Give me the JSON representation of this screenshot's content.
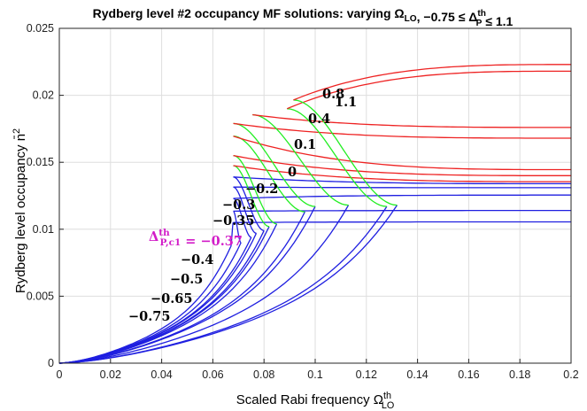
{
  "chart_data": {
    "type": "line",
    "title": "Rydberg level #2 occupancy MF solutions: varying Ω_LO, −0.75 ≤ Δ_P^th ≤ 1.1",
    "xlabel": "Scaled Rabi frequency Ω_LO^th",
    "ylabel": "Rydberg level occupancy n̄²",
    "xlim": [
      0,
      0.2
    ],
    "ylim": [
      0,
      0.025
    ],
    "x_ticks": [
      "0",
      "0.02",
      "0.04",
      "0.06",
      "0.08",
      "0.1",
      "0.12",
      "0.14",
      "0.16",
      "0.18",
      "0.2"
    ],
    "y_ticks": [
      "0",
      "0.005",
      "0.01",
      "0.015",
      "0.02",
      "0.025"
    ],
    "grid": true,
    "colors": {
      "lower_branch": "#1f1fe0",
      "upper_branch": "#ee2222",
      "middle_branch": "#22ee22",
      "annotation": "#d21cc8"
    },
    "annotation": {
      "text": "Δ_P,c1^th = −0.37",
      "x": 0.08,
      "y": 0.0095
    },
    "series": [
      {
        "label": "−0.75",
        "x_turn": 0.067,
        "lower_end_y": 0.0087,
        "upper_end_y": 0.01055,
        "upper_color": "blue"
      },
      {
        "label": "−0.65",
        "x_turn": 0.071,
        "lower_end_y": 0.009,
        "upper_end_y": 0.0114,
        "upper_color": "blue"
      },
      {
        "label": "−0.5",
        "x_turn": 0.075,
        "lower_end_y": 0.0094,
        "upper_end_y": 0.01255,
        "upper_color": "blue"
      },
      {
        "label": "−0.4",
        "x_turn": 0.077,
        "lower_end_y": 0.0097,
        "upper_end_y": 0.0131,
        "upper_color": "blue"
      },
      {
        "label": "−0.35",
        "x_turn": 0.08,
        "lower_end_y": 0.0099,
        "upper_end_y": 0.0134,
        "upper_color": "blue"
      },
      {
        "label": "−0.3",
        "x_turn": 0.082,
        "lower_end_y": 0.0102,
        "upper_end_y": 0.01355,
        "upper_color": "red"
      },
      {
        "label": "−0.2",
        "x_turn": 0.085,
        "lower_end_y": 0.0104,
        "upper_end_y": 0.014,
        "upper_color": "red"
      },
      {
        "label": "0",
        "x_turn": 0.096,
        "lower_end_y": 0.0113,
        "upper_end_y": 0.01445,
        "upper_color": "red"
      },
      {
        "label": "0.1",
        "x_turn": 0.1,
        "lower_end_y": 0.0117,
        "upper_end_y": 0.0168,
        "upper_color": "red"
      },
      {
        "label": "0.4",
        "x_turn": 0.113,
        "lower_end_y": 0.0118,
        "upper_end_y": 0.0176,
        "upper_color": "red"
      },
      {
        "label": "0.8",
        "x_turn": 0.128,
        "lower_end_y": 0.0117,
        "upper_end_y": 0.0218,
        "upper_color": "red"
      },
      {
        "label": "1.1",
        "x_turn": 0.132,
        "lower_end_y": 0.0118,
        "upper_end_y": 0.0223,
        "upper_color": "red"
      }
    ]
  }
}
